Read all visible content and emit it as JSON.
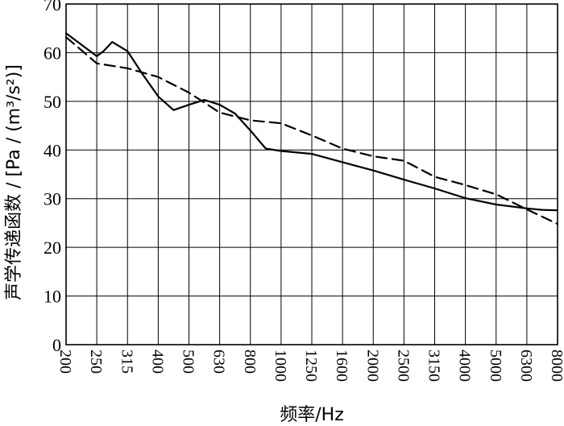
{
  "chart_data": {
    "type": "line",
    "title": "",
    "xlabel": "频率/Hz",
    "ylabel": "声学传递函数 / [Pa / (m³/s²)]",
    "ylim": [
      0,
      70
    ],
    "y_ticks": [
      "0",
      "10",
      "20",
      "30",
      "40",
      "50",
      "60",
      "70"
    ],
    "categories": [
      "200",
      "250",
      "315",
      "400",
      "500",
      "630",
      "800",
      "1000",
      "1250",
      "1600",
      "2000",
      "2500",
      "3150",
      "4000",
      "5000",
      "6300",
      "8000"
    ],
    "grid": true,
    "legend": "none",
    "series": [
      {
        "style": "solid",
        "x": [
          0,
          1,
          1.2,
          1.5,
          2,
          2.5,
          3,
          3.5,
          4,
          4.5,
          5,
          5.5,
          6,
          6.5,
          7,
          8,
          9,
          10,
          11,
          12,
          13,
          14,
          15,
          15.5,
          16
        ],
        "values": [
          64,
          59.3,
          60.2,
          62.2,
          60.3,
          55.5,
          51,
          48.2,
          49.3,
          50.3,
          49.3,
          47.5,
          44,
          40.3,
          39.8,
          39.2,
          37.5,
          35.8,
          33.9,
          32.1,
          30.1,
          28.8,
          28,
          27.7,
          27.6
        ]
      },
      {
        "style": "dashed",
        "x": [
          0,
          1,
          2,
          3,
          4,
          5,
          6,
          7,
          8,
          9,
          10,
          11,
          12,
          13,
          14,
          15,
          16
        ],
        "values": [
          63.2,
          57.8,
          56.8,
          55,
          51.8,
          47.7,
          46.1,
          45.5,
          43,
          40.3,
          38.7,
          37.8,
          34.5,
          32.8,
          30.9,
          27.8,
          24.8
        ]
      }
    ]
  }
}
